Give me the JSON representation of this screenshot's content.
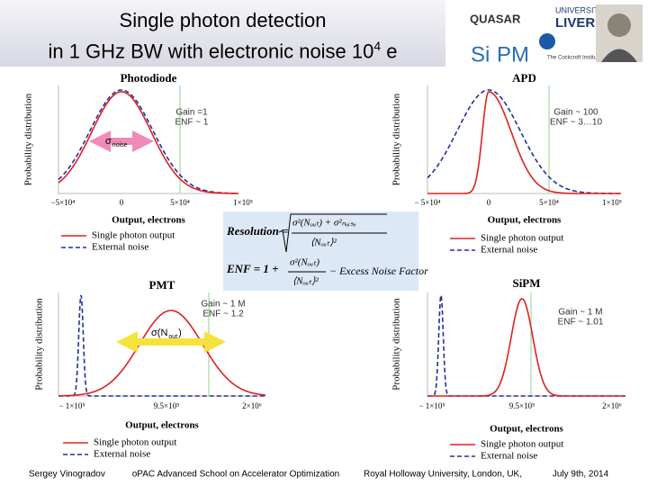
{
  "header": {
    "title_line1": "Single photon detection",
    "title_line2": "in 1 GHz BW with electronic noise 10",
    "title_sup": "4",
    "title_end": " e"
  },
  "logos": [
    "QUASAR",
    "UNIVERSITY OF",
    "LIVERPOOL",
    "Si",
    "PM",
    "The Cockcroft Institute"
  ],
  "panels": [
    {
      "title": "Photodiode",
      "y_label": "Probability distribution",
      "x_label": "Output, electrons",
      "x_ticks": [
        "−5×10⁴",
        "0",
        "5×10⁴",
        "1×10⁵"
      ],
      "annotations": [
        "Gain =1",
        "ENF ~ 1"
      ],
      "arrow_label": [
        "σ",
        "noise"
      ],
      "legend": [
        "Single photon output",
        "External noise"
      ]
    },
    {
      "title": "APD",
      "y_label": "Probability distribution",
      "x_label": "Output, electrons",
      "x_ticks": [
        "− 5×10⁴",
        "0",
        "5×10⁴",
        "1×10⁵"
      ],
      "annotations": [
        "Gain ~ 100",
        "ENF ~ 3…10"
      ],
      "legend": [
        "Single photon output",
        "External noise"
      ]
    },
    {
      "title": "PMT",
      "y_label": "Probability distribution",
      "x_label": "Output, electrons",
      "x_ticks": [
        "− 1×10⁵",
        "9.5×10⁵",
        "2×10⁶"
      ],
      "annotations": [
        "Gain ~ 1 M",
        "ENF ~ 1.2"
      ],
      "arrow_label": [
        "σ(N",
        "out",
        ")"
      ],
      "legend": [
        "Single photon output",
        "External noise"
      ]
    },
    {
      "title": "SiPM",
      "y_label": "Probability distribution",
      "x_label": "Output, electrons",
      "x_ticks": [
        "− 1×10⁵",
        "9.5×10⁵",
        "2×10⁶"
      ],
      "annotations": [
        "Gain ~ 1 M",
        "ENF ~ 1.01"
      ],
      "legend": [
        "Single photon output",
        "External noise"
      ]
    }
  ],
  "formula": {
    "resolution_lhs": "Resolution =",
    "resolution_num": "σ²(Nₒᵤₜ) + σ²ₙₒᵢₛₑ",
    "resolution_den": "⟨Nₒᵤₜ⟩²",
    "enf_lhs": "ENF = 1 +",
    "enf_num": "σ²(Nₒᵤₜ)",
    "enf_den": "⟨Nₒᵤₜ⟩²",
    "enf_rhs": "− Excess  Noise  Factor"
  },
  "footer": [
    "Sergey Vinogradov",
    "oPAC Advanced School on Accelerator Optimization",
    "Royal Holloway University, London, UK,",
    "July 9th, 2014"
  ]
}
